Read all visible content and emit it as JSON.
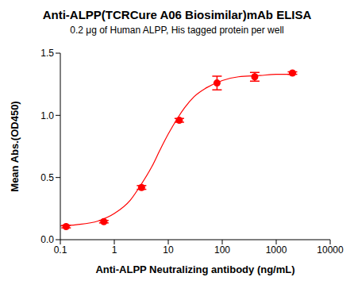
{
  "chart_data": {
    "type": "scatter",
    "title": "Anti-ALPP(TCRCure A06 Biosimilar)mAb ELISA",
    "subtitle": "0.2 μg of Human ALPP, His tagged protein per well",
    "x_label": "Anti-ALPP Neutralizing antibody  (ng/mL)",
    "y_label": "Mean Abs.(OD450)",
    "log": "x",
    "grid": false,
    "xlim": [
      0.1,
      10000
    ],
    "xticks": [
      0.1,
      1,
      10,
      100,
      1000,
      10000
    ],
    "ylim": [
      0,
      1.5
    ],
    "yticks": [
      {
        "value": 0,
        "label": "0.0"
      },
      {
        "value": 0.5,
        "label": "0.5"
      },
      {
        "value": 1,
        "label": "1.0"
      },
      {
        "value": 1.5,
        "label": "1.5"
      }
    ],
    "series": [
      {
        "type": "scatter",
        "color": "#ff0000",
        "marker": "circle",
        "x": [
          0.128,
          0.64,
          3.2,
          16,
          80,
          400,
          2000
        ],
        "values": [
          0.105,
          0.145,
          0.42,
          0.96,
          1.26,
          1.31,
          1.34
        ],
        "error": [
          0.01,
          0.01,
          0.015,
          0.015,
          0.055,
          0.035,
          0.01
        ]
      },
      {
        "type": "line",
        "color": "#ff0000",
        "line_style": "solid",
        "x": [
          0.1,
          0.2,
          0.5,
          1,
          2,
          3,
          5,
          7,
          10,
          15,
          20,
          30,
          50,
          100,
          200,
          500,
          1000,
          2000
        ],
        "values": [
          0.11,
          0.12,
          0.15,
          0.21,
          0.32,
          0.43,
          0.59,
          0.72,
          0.85,
          0.98,
          1.06,
          1.15,
          1.22,
          1.28,
          1.31,
          1.32,
          1.33,
          1.33
        ]
      }
    ]
  }
}
